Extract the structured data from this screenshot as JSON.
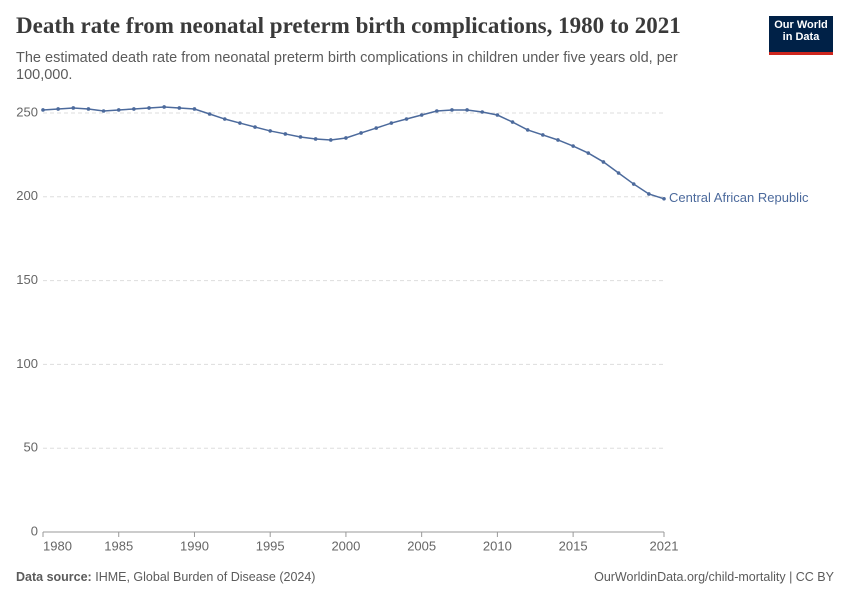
{
  "chart_data": {
    "type": "line",
    "title": "Death rate from neonatal preterm birth complications, 1980 to 2021",
    "subtitle": "The estimated death rate from neonatal preterm birth complications in children under five years old, per 100,000.",
    "x": [
      1980,
      1981,
      1982,
      1983,
      1984,
      1985,
      1986,
      1987,
      1988,
      1989,
      1990,
      1991,
      1992,
      1993,
      1994,
      1995,
      1996,
      1997,
      1998,
      1999,
      2000,
      2001,
      2002,
      2003,
      2004,
      2005,
      2006,
      2007,
      2008,
      2009,
      2010,
      2011,
      2012,
      2013,
      2014,
      2015,
      2016,
      2017,
      2018,
      2019,
      2020,
      2021
    ],
    "series": [
      {
        "name": "Central African Republic",
        "color": "#4c6a9c",
        "values": [
          251.8,
          252.4,
          253,
          252.4,
          251.2,
          251.8,
          252.4,
          253,
          253.6,
          253,
          252.4,
          249.4,
          246.4,
          244,
          241.6,
          239.3,
          237.5,
          235.7,
          234.5,
          233.9,
          235.1,
          238.1,
          241,
          244,
          246.4,
          248.8,
          251.2,
          251.8,
          251.8,
          250.6,
          248.8,
          244.6,
          239.9,
          236.9,
          233.9,
          230.3,
          226.1,
          220.8,
          214.2,
          207.6,
          201.7,
          198.8
        ]
      }
    ],
    "xlim": [
      1980,
      2021
    ],
    "xticks": [
      1980,
      1985,
      1990,
      1995,
      2000,
      2005,
      2010,
      2015,
      2021
    ],
    "ylim": [
      0,
      250
    ],
    "yticks": [
      0,
      50,
      100,
      150,
      200,
      250
    ],
    "grid": true
  },
  "logo": [
    "Our World",
    "in Data"
  ],
  "source_label": "Data source:",
  "source": "IHME, Global Burden of Disease (2024)",
  "footer_right": "OurWorldinData.org/child-mortality | CC BY"
}
